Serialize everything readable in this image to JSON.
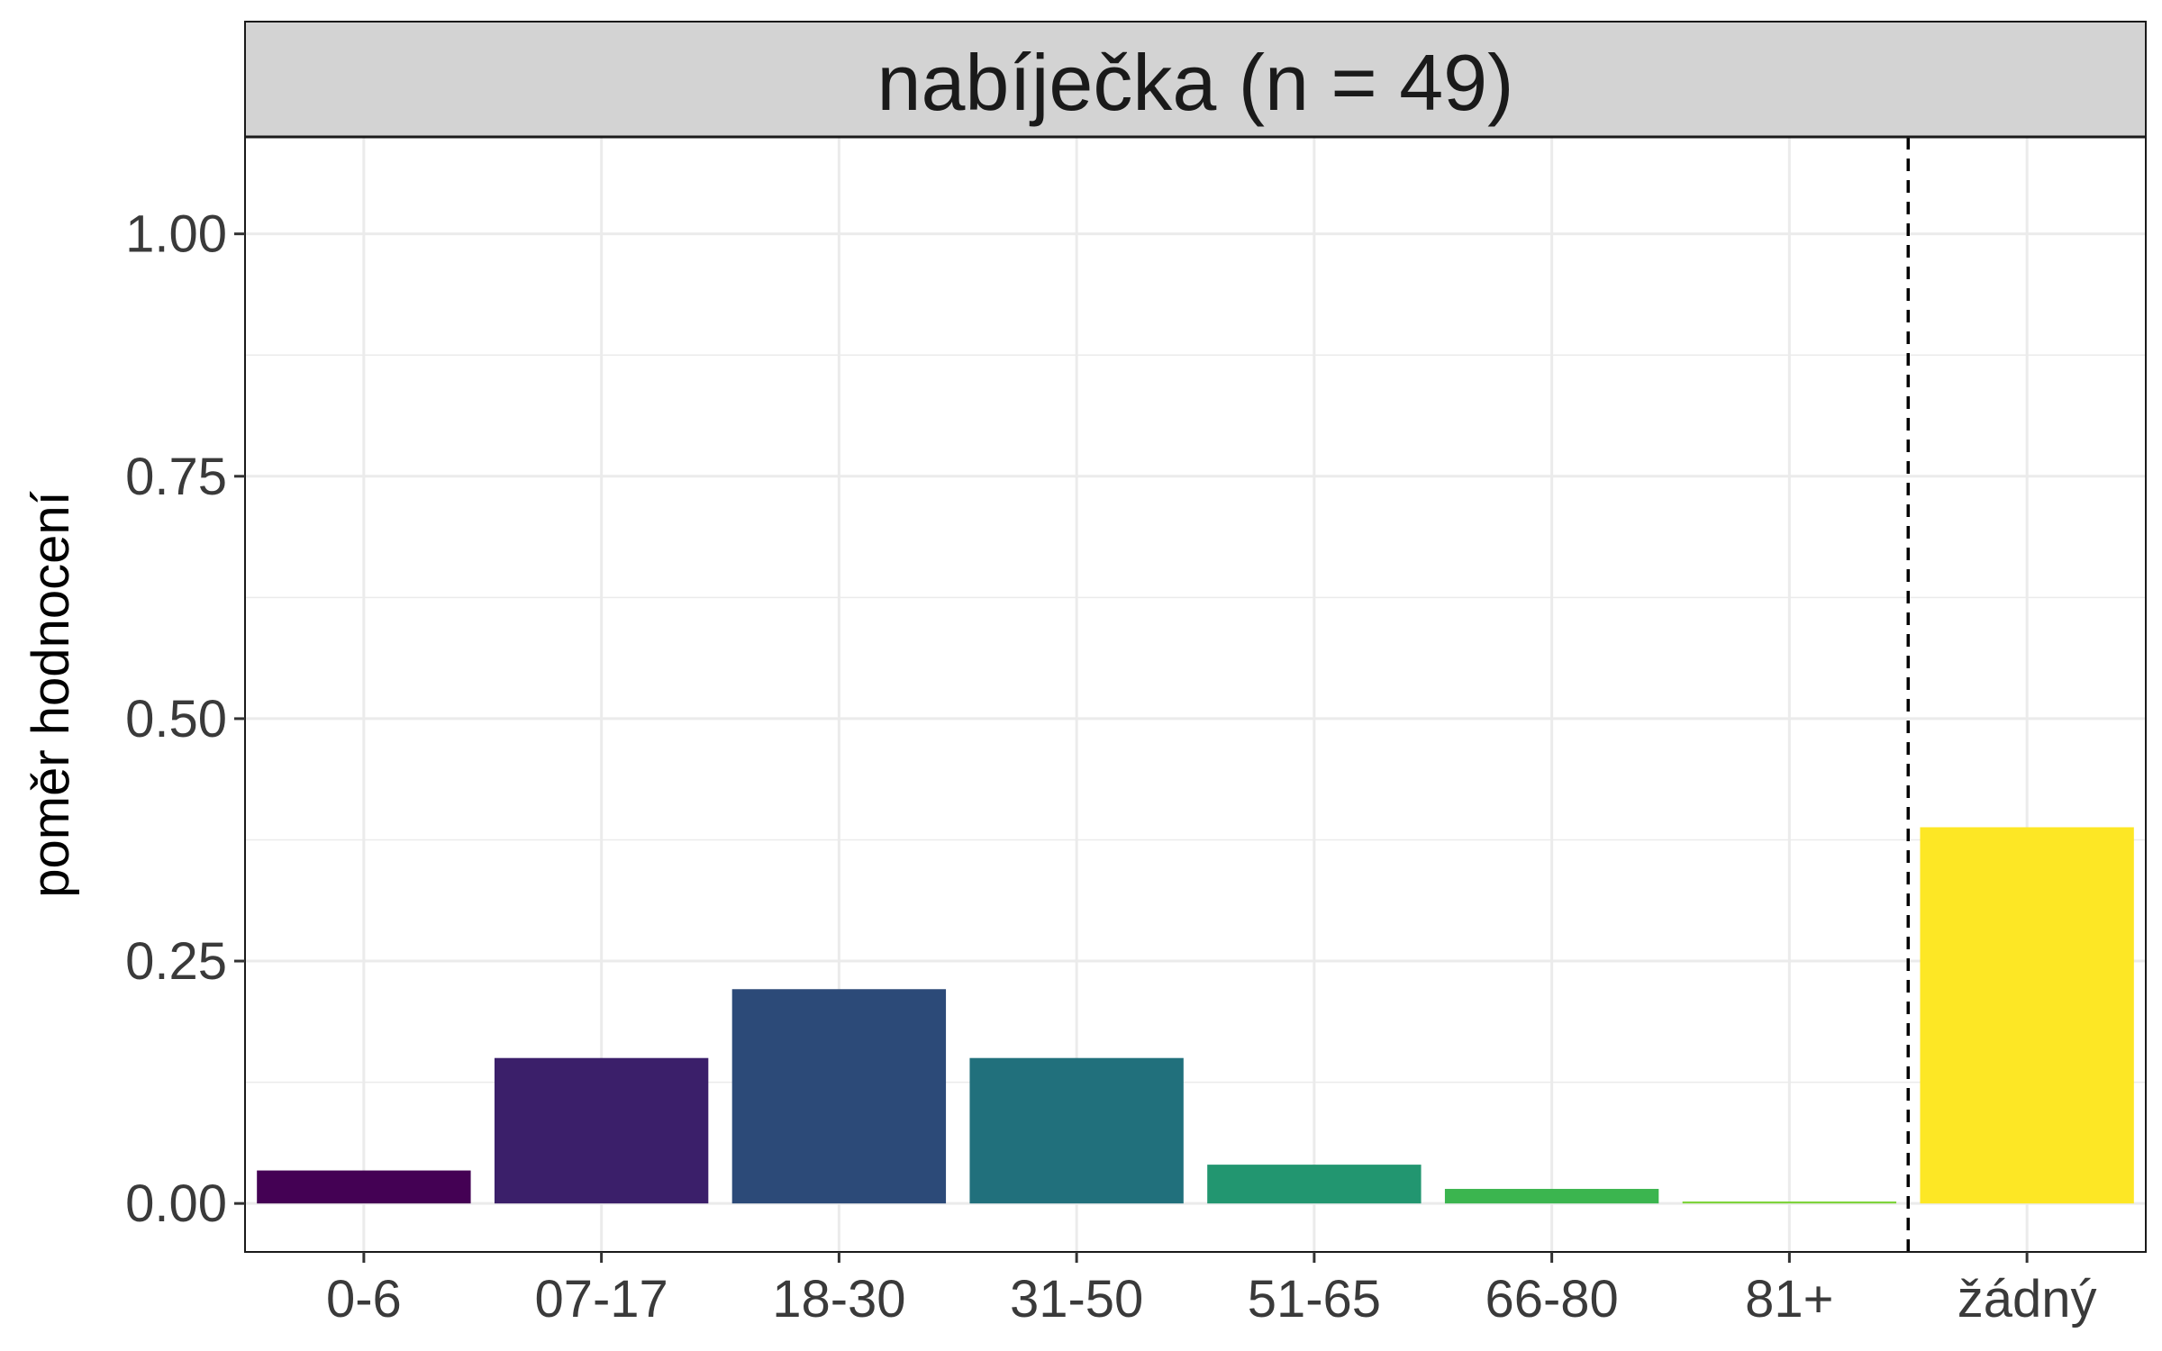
{
  "chart_data": {
    "type": "bar",
    "facet_title": "nabíječka (n = 49)",
    "xlabel": "",
    "ylabel": "poměr hodnocení",
    "categories": [
      "0-6",
      "07-17",
      "18-30",
      "31-50",
      "51-65",
      "66-80",
      "81+",
      "žádný"
    ],
    "values": [
      0.034,
      0.15,
      0.221,
      0.15,
      0.04,
      0.015,
      0.002,
      0.388
    ],
    "colors": [
      "#440154",
      "#3B1F6A",
      "#2C4A78",
      "#21707C",
      "#229670",
      "#3BB54F",
      "#7DD33A",
      "#FDE725"
    ],
    "ylim": [
      -0.05,
      1.1
    ],
    "yticks": [
      0.0,
      0.25,
      0.5,
      0.75,
      1.0
    ],
    "ytick_labels": [
      "0.00",
      "0.25",
      "0.50",
      "0.75",
      "1.00"
    ],
    "reference_line": {
      "between": [
        "81+",
        "žádný"
      ],
      "style": "dashed"
    },
    "grid": true,
    "theme": {
      "strip_fill": "#D3D3D3",
      "grid_color": "#EBEBEB",
      "panel_border": "#333333"
    }
  }
}
